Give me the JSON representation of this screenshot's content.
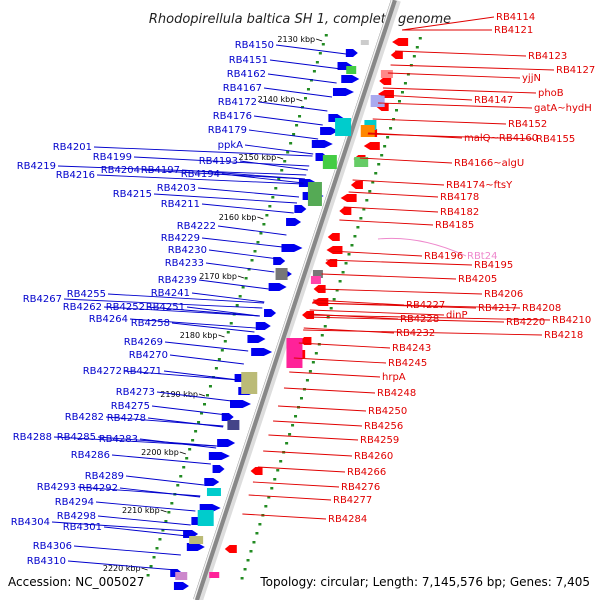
{
  "title": "Rhodopirellula baltica SH 1, complete genome",
  "accession": "Accession: NC_005027",
  "summary": "Topology: circular; Length: 7,145,576 bp; Genes: 7,405",
  "colors": {
    "left_label": "#0000cc",
    "right_label": "#e00000",
    "rna_label": "#ee88cc",
    "forward_gene": "#0000ee",
    "reverse_gene": "#ff0000",
    "tick": "#228b22",
    "backbone": "#999999"
  },
  "kbp_ticks": [
    "2130 kbp",
    "2140 kbp",
    "2150 kbp",
    "2160 kbp",
    "2170 kbp",
    "2180 kbp",
    "2190 kbp",
    "2200 kbp",
    "2210 kbp",
    "2220 kbp"
  ],
  "left_labels": [
    "RB4150",
    "RB4151",
    "RB4162",
    "RB4167",
    "RB4172",
    "RB4176",
    "RB4179",
    "ppkA",
    "RB4193",
    "RB4201",
    "RB4199",
    "RB4197",
    "RB4219",
    "RB4216",
    "RB4204",
    "RB4194",
    "RB4203",
    "RB4215",
    "RB4211",
    "RB4222",
    "RB4229",
    "RB4230",
    "RB4233",
    "RB4239",
    "RB4241",
    "RB4267",
    "RB4255",
    "RB4262",
    "RB4252",
    "RB4251",
    "RB4264",
    "RB4258",
    "RB4269",
    "RB4270",
    "RB4272",
    "RB4271",
    "RB4273",
    "RB4275",
    "RB4282",
    "RB4278",
    "RB4288",
    "RB4285",
    "RB4283",
    "RB4286",
    "RB4289",
    "RB4293",
    "RB4292",
    "RB4294",
    "RB4298",
    "RB4304",
    "RB4301",
    "RB4306",
    "RB4310"
  ],
  "right_labels": [
    "RB4114",
    "RB4121",
    "RB4123",
    "RB4127",
    "yjjN",
    "phoB",
    "RB4147",
    "gatA~hydH",
    "RB4152",
    "malQ~RB4160",
    "RB4155",
    "RB4166~algU",
    "RB4174~ftsY",
    "RB4178",
    "RB4182",
    "RB4185",
    "RB4196",
    "RB4195",
    "RB4205",
    "RB4206",
    "RB4217",
    "RB4208",
    "RB4227",
    "dinP",
    "RB4220",
    "RB4210",
    "RB4228",
    "RB4218",
    "RB4232",
    "RB4243",
    "RB4245",
    "hrpA",
    "RB4248",
    "RB4250",
    "RB4256",
    "RB4259",
    "RB4260",
    "RB4266",
    "RB4276",
    "RB4277",
    "RB4284"
  ],
  "rna_labels": [
    "RBt24"
  ]
}
